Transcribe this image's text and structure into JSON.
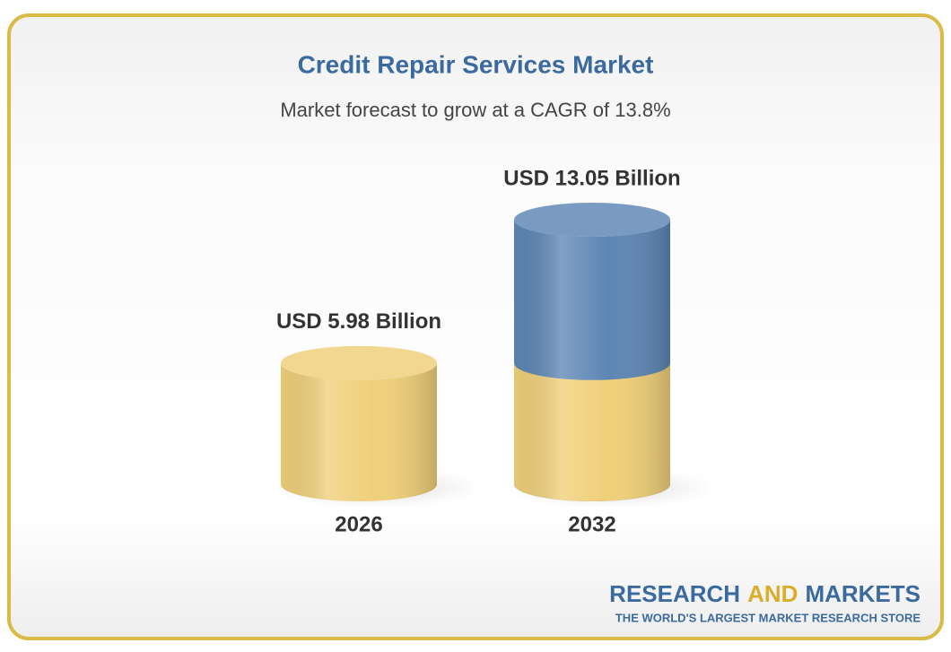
{
  "chart_data": {
    "type": "cylinder",
    "title": "Credit Repair Services Market",
    "subtitle": "Market forecast to grow at a CAGR of 13.8%",
    "categories": [
      "2026",
      "2032"
    ],
    "values": [
      5.98,
      13.05
    ],
    "value_labels": [
      "USD 5.98 Billion",
      "USD 13.05 Billion"
    ],
    "colors": [
      "#efcf78",
      "#5d86b4"
    ]
  },
  "brand": {
    "name": [
      "RESEARCH",
      "AND",
      "MARKETS"
    ],
    "tagline": "THE WORLD'S LARGEST MARKET RESEARCH STORE"
  }
}
